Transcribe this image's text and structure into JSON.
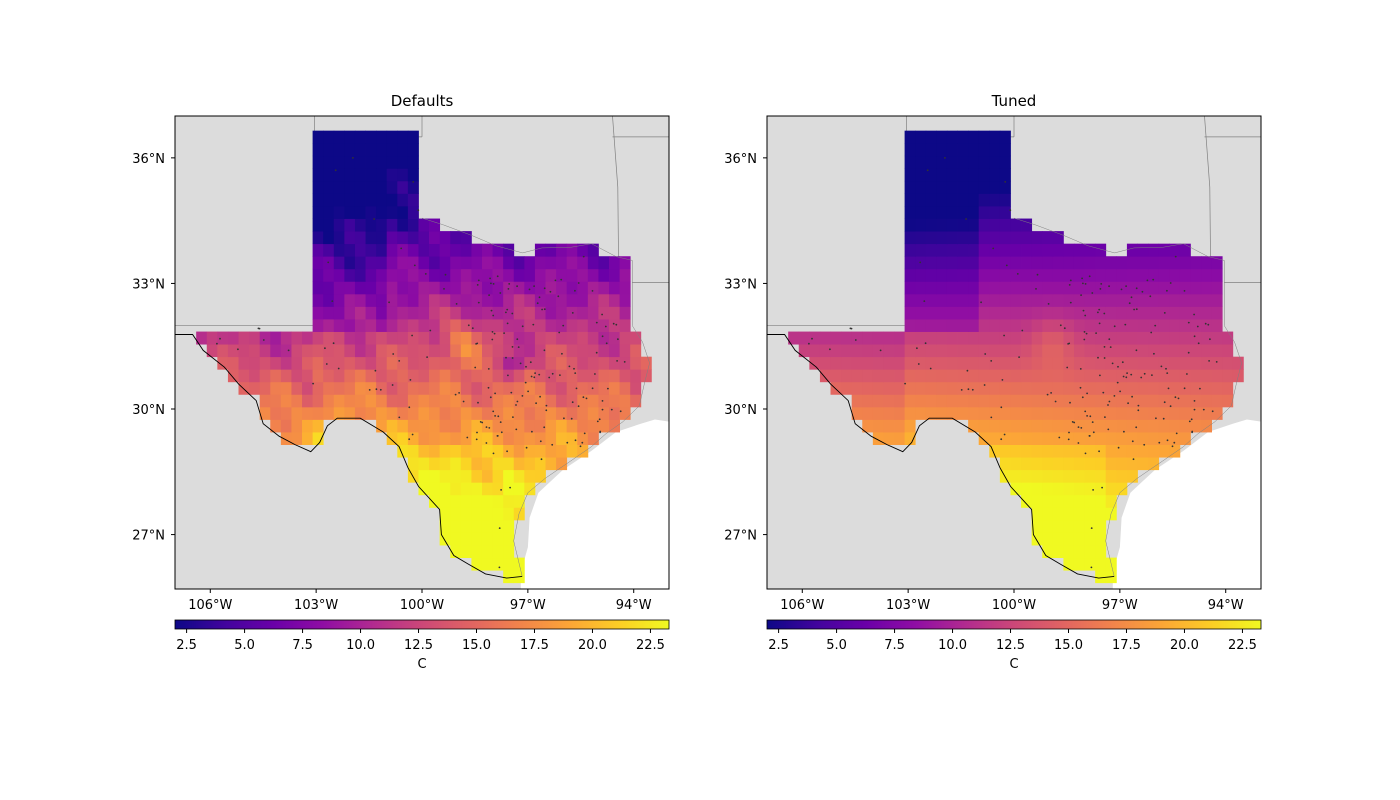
{
  "panels": [
    {
      "title": "Defaults",
      "variant": "defaults"
    },
    {
      "title": "Tuned",
      "variant": "tuned"
    }
  ],
  "map": {
    "lon_range": [
      -107.0,
      -93.0
    ],
    "lat_range": [
      25.7,
      37.0
    ],
    "lon_ticks": [
      -106,
      -103,
      -100,
      -97,
      -94
    ],
    "lon_tick_labels": [
      "106°W",
      "103°W",
      "100°W",
      "97°W",
      "94°W"
    ],
    "lat_ticks": [
      27,
      30,
      33,
      36
    ],
    "lat_tick_labels": [
      "27°N",
      "30°N",
      "33°N",
      "36°N"
    ],
    "land_color": "#dcdcdc",
    "ocean_color": "#ffffff"
  },
  "colorbar": {
    "colormap": "plasma",
    "range": [
      2.0,
      23.3
    ],
    "ticks": [
      2.5,
      5.0,
      7.5,
      10.0,
      12.5,
      15.0,
      17.5,
      20.0,
      22.5
    ],
    "tick_labels": [
      "2.5",
      "5.0",
      "7.5",
      "10.0",
      "12.5",
      "15.0",
      "17.5",
      "20.0",
      "22.5"
    ],
    "unit_label": "C"
  },
  "colors": {
    "station_dot": "#333333",
    "border_line": "#000000",
    "state_line": "#808080"
  }
}
